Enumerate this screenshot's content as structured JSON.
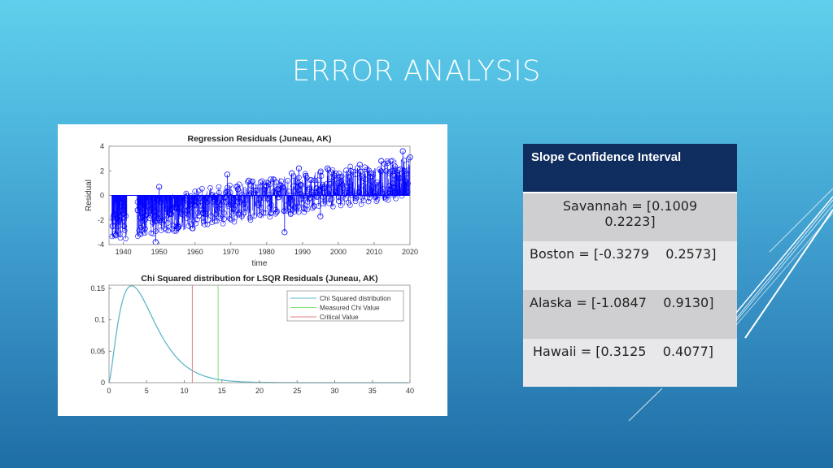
{
  "slide": {
    "title": "ERROR ANALYSIS"
  },
  "table": {
    "header": "Slope Confidence Interval",
    "rows": [
      {
        "label": "Savannah = [0.1009 0.2223]",
        "line1": "Savannah = [0.1009",
        "line2": "0.2223]"
      },
      {
        "label": "Boston = [-0.3279    0.2573]",
        "line1": "Boston = [-0.3279    0.2573]"
      },
      {
        "label": "Alaska = [-1.0847    0.9130]",
        "line1": "Alaska = [-1.0847    0.9130]"
      },
      {
        "label": "Hawaii = [0.3125    0.4077]",
        "line1": "Hawaii = [0.3125    0.4077]"
      }
    ]
  },
  "colors": {
    "header_bg": "#0f2d5e",
    "residual_series": "#0000ff",
    "chi_curve": "#5fb8c8",
    "measured_line": "#7fe07f",
    "critical_line": "#e07f7f"
  },
  "chart_data": [
    {
      "type": "scatter",
      "title": "Regression Residuals (Juneau, AK)",
      "xlabel": "time",
      "ylabel": "Residual",
      "xlim": [
        1936,
        2020
      ],
      "ylim": [
        -4,
        4
      ],
      "xticks": [
        1940,
        1950,
        1960,
        1970,
        1980,
        1990,
        2000,
        2010,
        2020
      ],
      "yticks": [
        -4,
        -2,
        0,
        2,
        4
      ],
      "grid": false,
      "style": "stem with circle markers",
      "series": [
        {
          "name": "Residual",
          "trend": "roughly linear increase from about -2 in 1937 to about +1.5 in 2020",
          "x": [
            1937,
            1938,
            1939,
            1940,
            1944,
            1946,
            1948,
            1949,
            1950,
            1953,
            1955,
            1958,
            1960,
            1963,
            1965,
            1969,
            1972,
            1975,
            1978,
            1980,
            1983,
            1985,
            1987,
            1989,
            1992,
            1995,
            1997,
            2000,
            2003,
            2006,
            2009,
            2012,
            2015,
            2018,
            2020
          ],
          "y": [
            -2.5,
            -3.2,
            -2.0,
            -1.5,
            -1.2,
            -2.0,
            -1.5,
            -3.8,
            0.7,
            -1.5,
            -1.0,
            -1.2,
            -0.8,
            -1.5,
            -0.5,
            1.7,
            0.5,
            1.2,
            -0.3,
            0.8,
            0.5,
            -3.0,
            1.8,
            2.2,
            0.5,
            -1.7,
            2.2,
            1.0,
            1.5,
            2.5,
            1.8,
            2.8,
            2.0,
            3.6,
            3.1
          ]
        }
      ]
    },
    {
      "type": "line",
      "title": "Chi Squared distribution for LSQR Residuals (Juneau, AK)",
      "xlabel": "",
      "ylabel": "",
      "xlim": [
        0,
        40
      ],
      "ylim": [
        0,
        0.155
      ],
      "xticks": [
        0,
        5,
        10,
        15,
        20,
        25,
        30,
        35,
        40
      ],
      "yticks": [
        0,
        0.05,
        0.1,
        0.15
      ],
      "grid": false,
      "legend_position": "upper right",
      "legend": [
        "Chi Squared distribution",
        "Measured Chi Value",
        "Critical Value"
      ],
      "series": [
        {
          "name": "Chi Squared distribution",
          "x": [
            0,
            1,
            2,
            3,
            4,
            5,
            6,
            7,
            8,
            9,
            10,
            11,
            12,
            14,
            16,
            18,
            20,
            25,
            30,
            40
          ],
          "y": [
            0,
            0.087,
            0.14,
            0.155,
            0.145,
            0.122,
            0.096,
            0.073,
            0.055,
            0.04,
            0.028,
            0.02,
            0.013,
            0.006,
            0.003,
            0.001,
            0.0005,
            0,
            0,
            0
          ]
        },
        {
          "name": "Measured Chi Value",
          "x": [
            14.5,
            14.5
          ],
          "y": [
            0,
            0.155
          ]
        },
        {
          "name": "Critical Value",
          "x": [
            11.07,
            11.07
          ],
          "y": [
            0,
            0.155
          ]
        }
      ]
    }
  ]
}
